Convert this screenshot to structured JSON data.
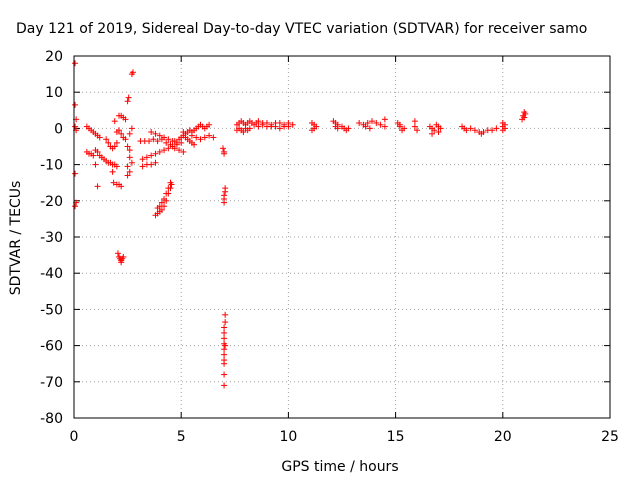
{
  "chart_data": {
    "type": "scatter",
    "title": "Day 121 of 2019, Sidereal Day-to-day VTEC variation (SDTVAR) for receiver samo",
    "xlabel": "GPS time / hours",
    "ylabel": "SDTVAR / TECUs",
    "xlim": [
      0,
      25
    ],
    "ylim": [
      -80,
      20
    ],
    "xticks": [
      0,
      5,
      10,
      15,
      20,
      25
    ],
    "yticks": [
      -80,
      -70,
      -60,
      -50,
      -40,
      -30,
      -20,
      -10,
      0,
      10,
      20
    ],
    "grid": true,
    "marker": "+",
    "color": "#ff0000",
    "series": [
      {
        "name": "SDTVAR",
        "points": [
          [
            0.05,
            18.0
          ],
          [
            0.05,
            6.5
          ],
          [
            0.1,
            2.5
          ],
          [
            0.05,
            0.5
          ],
          [
            0.1,
            -0.5
          ],
          [
            0.05,
            -12.5
          ],
          [
            0.05,
            -21.5
          ],
          [
            0.1,
            -20.5
          ],
          [
            0.6,
            0.5
          ],
          [
            0.7,
            0.0
          ],
          [
            0.8,
            -0.5
          ],
          [
            0.9,
            -1.0
          ],
          [
            1.0,
            -1.5
          ],
          [
            1.1,
            -2.0
          ],
          [
            1.2,
            -2.5
          ],
          [
            0.6,
            -6.5
          ],
          [
            0.7,
            -7.0
          ],
          [
            0.8,
            -7.0
          ],
          [
            0.9,
            -7.5
          ],
          [
            1.0,
            -6.0
          ],
          [
            1.1,
            -6.5
          ],
          [
            1.2,
            -7.5
          ],
          [
            1.0,
            -10.0
          ],
          [
            1.1,
            -16.0
          ],
          [
            1.3,
            -8.0
          ],
          [
            1.4,
            -8.5
          ],
          [
            1.5,
            -9.0
          ],
          [
            1.6,
            -9.5
          ],
          [
            1.7,
            -9.5
          ],
          [
            1.8,
            -10.0
          ],
          [
            1.9,
            -10.0
          ],
          [
            2.0,
            -10.5
          ],
          [
            1.5,
            -3.0
          ],
          [
            1.6,
            -4.0
          ],
          [
            1.7,
            -5.0
          ],
          [
            1.8,
            -5.5
          ],
          [
            1.9,
            -5.0
          ],
          [
            2.0,
            -4.0
          ],
          [
            2.0,
            -1.0
          ],
          [
            2.1,
            -0.5
          ],
          [
            2.2,
            -1.5
          ],
          [
            2.3,
            -2.5
          ],
          [
            2.4,
            -3.0
          ],
          [
            1.9,
            2.0
          ],
          [
            2.1,
            3.5
          ],
          [
            2.2,
            3.5
          ],
          [
            2.3,
            3.0
          ],
          [
            2.4,
            2.5
          ],
          [
            2.5,
            7.5
          ],
          [
            2.55,
            8.5
          ],
          [
            2.7,
            15.0
          ],
          [
            2.75,
            15.5
          ],
          [
            1.8,
            -12.0
          ],
          [
            1.85,
            -15.0
          ],
          [
            2.0,
            -15.5
          ],
          [
            2.1,
            -15.5
          ],
          [
            2.2,
            -16.0
          ],
          [
            2.05,
            -34.5
          ],
          [
            2.1,
            -35.5
          ],
          [
            2.15,
            -36.0
          ],
          [
            2.2,
            -36.5
          ],
          [
            2.25,
            -36.0
          ],
          [
            2.3,
            -35.5
          ],
          [
            2.2,
            -37.0
          ],
          [
            2.5,
            -5.0
          ],
          [
            2.6,
            -6.0
          ],
          [
            2.6,
            -8.0
          ],
          [
            2.7,
            -9.5
          ],
          [
            2.5,
            -10.5
          ],
          [
            2.6,
            -12.0
          ],
          [
            2.5,
            -13.0
          ],
          [
            2.6,
            -1.5
          ],
          [
            2.7,
            0.0
          ],
          [
            3.2,
            -10.5
          ],
          [
            3.4,
            -10.0
          ],
          [
            3.6,
            -10.0
          ],
          [
            3.8,
            -9.5
          ],
          [
            3.2,
            -8.5
          ],
          [
            3.4,
            -8.0
          ],
          [
            3.6,
            -7.5
          ],
          [
            3.8,
            -7.0
          ],
          [
            4.0,
            -6.5
          ],
          [
            4.2,
            -6.0
          ],
          [
            4.4,
            -5.5
          ],
          [
            4.6,
            -5.0
          ],
          [
            4.8,
            -4.5
          ],
          [
            5.0,
            -4.0
          ],
          [
            3.1,
            -3.5
          ],
          [
            3.3,
            -3.5
          ],
          [
            3.5,
            -3.5
          ],
          [
            3.7,
            -3.0
          ],
          [
            3.9,
            -3.5
          ],
          [
            4.1,
            -3.0
          ],
          [
            4.3,
            -4.0
          ],
          [
            4.5,
            -4.5
          ],
          [
            4.7,
            -5.5
          ],
          [
            4.9,
            -6.0
          ],
          [
            5.1,
            -6.5
          ],
          [
            3.6,
            -1.0
          ],
          [
            3.8,
            -1.5
          ],
          [
            4.0,
            -2.0
          ],
          [
            4.2,
            -2.5
          ],
          [
            4.4,
            -3.0
          ],
          [
            4.6,
            -3.5
          ],
          [
            3.8,
            -24.0
          ],
          [
            3.9,
            -23.5
          ],
          [
            4.0,
            -23.0
          ],
          [
            4.1,
            -22.5
          ],
          [
            4.2,
            -21.5
          ],
          [
            4.3,
            -20.0
          ],
          [
            4.4,
            -18.0
          ],
          [
            4.5,
            -16.5
          ],
          [
            4.55,
            -15.5
          ],
          [
            3.9,
            -22.0
          ],
          [
            4.0,
            -21.5
          ],
          [
            4.1,
            -20.5
          ],
          [
            4.2,
            -19.5
          ],
          [
            4.3,
            -18.0
          ],
          [
            4.4,
            -16.5
          ],
          [
            4.5,
            -15.0
          ],
          [
            4.7,
            -3.5
          ],
          [
            4.8,
            -4.0
          ],
          [
            4.9,
            -3.0
          ],
          [
            5.0,
            -2.5
          ],
          [
            5.1,
            -2.0
          ],
          [
            5.2,
            -2.5
          ],
          [
            5.3,
            -3.0
          ],
          [
            5.4,
            -3.5
          ],
          [
            5.5,
            -4.0
          ],
          [
            5.6,
            -4.5
          ],
          [
            5.1,
            -1.0
          ],
          [
            5.2,
            -1.5
          ],
          [
            5.3,
            -1.0
          ],
          [
            5.4,
            -0.5
          ],
          [
            5.5,
            -1.0
          ],
          [
            5.6,
            -0.5
          ],
          [
            5.7,
            0.0
          ],
          [
            5.8,
            0.5
          ],
          [
            5.9,
            1.0
          ],
          [
            6.0,
            0.5
          ],
          [
            6.1,
            0.0
          ],
          [
            6.2,
            0.5
          ],
          [
            6.3,
            1.0
          ],
          [
            5.5,
            -2.0
          ],
          [
            5.7,
            -2.5
          ],
          [
            5.9,
            -3.0
          ],
          [
            6.1,
            -2.5
          ],
          [
            6.3,
            -2.0
          ],
          [
            6.5,
            -2.5
          ],
          [
            6.95,
            -5.5
          ],
          [
            7.0,
            -6.5
          ],
          [
            7.0,
            -7.0
          ],
          [
            7.05,
            -16.5
          ],
          [
            7.05,
            -17.5
          ],
          [
            7.0,
            -18.5
          ],
          [
            7.0,
            -19.5
          ],
          [
            7.0,
            -20.5
          ],
          [
            7.05,
            -51.5
          ],
          [
            7.05,
            -53.5
          ],
          [
            7.0,
            -55.0
          ],
          [
            7.0,
            -56.5
          ],
          [
            7.0,
            -58.0
          ],
          [
            7.0,
            -59.5
          ],
          [
            7.05,
            -60.0
          ],
          [
            7.0,
            -61.0
          ],
          [
            7.0,
            -62.5
          ],
          [
            7.0,
            -64.0
          ],
          [
            7.0,
            -65.0
          ],
          [
            7.0,
            -68.0
          ],
          [
            7.0,
            -71.0
          ],
          [
            7.6,
            1.0
          ],
          [
            7.7,
            1.5
          ],
          [
            7.8,
            2.0
          ],
          [
            7.9,
            1.5
          ],
          [
            8.0,
            1.0
          ],
          [
            8.1,
            1.5
          ],
          [
            8.2,
            2.0
          ],
          [
            8.3,
            1.5
          ],
          [
            8.4,
            1.0
          ],
          [
            8.5,
            1.5
          ],
          [
            7.6,
            -0.5
          ],
          [
            7.7,
            0.0
          ],
          [
            7.8,
            -0.5
          ],
          [
            7.9,
            -1.0
          ],
          [
            8.0,
            0.0
          ],
          [
            8.1,
            -0.5
          ],
          [
            8.2,
            0.0
          ],
          [
            8.6,
            2.0
          ],
          [
            8.8,
            1.5
          ],
          [
            9.0,
            1.5
          ],
          [
            9.2,
            1.0
          ],
          [
            9.4,
            1.5
          ],
          [
            9.6,
            1.5
          ],
          [
            9.8,
            1.0
          ],
          [
            10.0,
            1.5
          ],
          [
            10.2,
            1.0
          ],
          [
            8.6,
            0.5
          ],
          [
            8.8,
            1.0
          ],
          [
            9.0,
            0.5
          ],
          [
            9.2,
            0.5
          ],
          [
            9.4,
            0.5
          ],
          [
            9.6,
            0.0
          ],
          [
            9.8,
            0.5
          ],
          [
            10.0,
            0.5
          ],
          [
            11.1,
            1.5
          ],
          [
            11.2,
            1.0
          ],
          [
            11.3,
            0.5
          ],
          [
            11.2,
            0.0
          ],
          [
            11.1,
            -0.5
          ],
          [
            12.1,
            2.0
          ],
          [
            12.2,
            1.5
          ],
          [
            12.3,
            1.0
          ],
          [
            12.2,
            0.5
          ],
          [
            12.3,
            0.0
          ],
          [
            12.5,
            0.5
          ],
          [
            12.6,
            0.0
          ],
          [
            12.7,
            -0.5
          ],
          [
            12.8,
            0.0
          ],
          [
            13.3,
            1.5
          ],
          [
            13.5,
            1.0
          ],
          [
            13.7,
            1.5
          ],
          [
            13.9,
            2.0
          ],
          [
            14.1,
            1.5
          ],
          [
            14.3,
            1.0
          ],
          [
            14.5,
            2.5
          ],
          [
            14.5,
            0.5
          ],
          [
            13.6,
            0.5
          ],
          [
            13.8,
            0.0
          ],
          [
            15.1,
            1.5
          ],
          [
            15.2,
            0.5
          ],
          [
            15.3,
            -0.5
          ],
          [
            15.4,
            0.0
          ],
          [
            15.2,
            1.0
          ],
          [
            15.9,
            2.0
          ],
          [
            15.9,
            0.5
          ],
          [
            16.0,
            -0.5
          ],
          [
            16.6,
            0.5
          ],
          [
            16.7,
            0.0
          ],
          [
            16.8,
            -0.5
          ],
          [
            16.7,
            -1.5
          ],
          [
            16.9,
            1.0
          ],
          [
            17.0,
            0.5
          ],
          [
            17.0,
            -1.0
          ],
          [
            17.1,
            0.0
          ],
          [
            18.1,
            0.5
          ],
          [
            18.2,
            0.0
          ],
          [
            18.3,
            -0.5
          ],
          [
            18.5,
            0.0
          ],
          [
            18.7,
            -0.5
          ],
          [
            18.9,
            -1.0
          ],
          [
            19.0,
            -1.5
          ],
          [
            19.1,
            -1.0
          ],
          [
            19.3,
            -0.5
          ],
          [
            19.5,
            -0.5
          ],
          [
            19.7,
            0.0
          ],
          [
            20.0,
            0.5
          ],
          [
            20.1,
            1.0
          ],
          [
            20.0,
            1.5
          ],
          [
            20.1,
            0.0
          ],
          [
            20.0,
            -0.5
          ],
          [
            20.9,
            2.5
          ],
          [
            21.0,
            3.0
          ],
          [
            21.05,
            4.0
          ],
          [
            21.0,
            4.5
          ],
          [
            20.95,
            3.5
          ]
        ]
      }
    ]
  }
}
